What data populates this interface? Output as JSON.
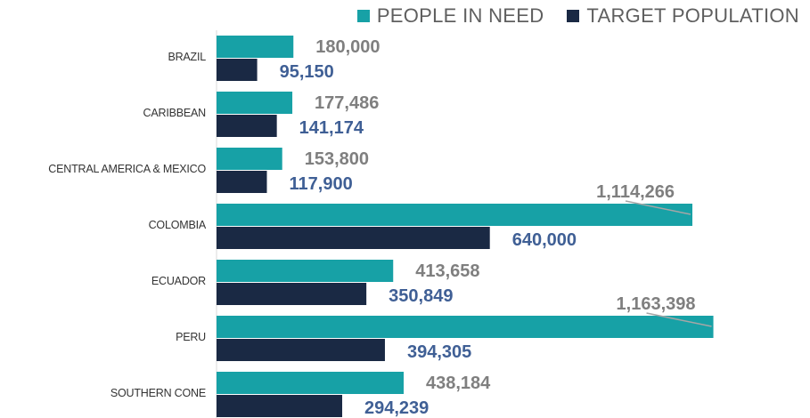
{
  "chart_data": {
    "type": "bar",
    "orientation": "horizontal",
    "categories": [
      "BRAZIL",
      "CARIBBEAN",
      "CENTRAL AMERICA & MEXICO",
      "COLOMBIA",
      "ECUADOR",
      "PERU",
      "SOUTHERN CONE"
    ],
    "series": [
      {
        "name": "PEOPLE IN NEED",
        "color": "#17a1a6",
        "label_color": "#7f7f7f",
        "values": [
          180000,
          177486,
          153800,
          1114266,
          413658,
          1163398,
          438184
        ],
        "labels": [
          "180,000",
          "177,486",
          "153,800",
          "1,114,266",
          "413,658",
          "1,163,398",
          "438,184"
        ]
      },
      {
        "name": "TARGET POPULATION",
        "color": "#1a2944",
        "label_color": "#3f5f95",
        "values": [
          95150,
          141174,
          117900,
          640000,
          350849,
          394305,
          294239
        ],
        "labels": [
          "95,150",
          "141,174",
          "117,900",
          "640,000",
          "350,849",
          "394,305",
          "294,239"
        ]
      }
    ],
    "legend_position": "top-right",
    "grid": false,
    "xlim": [
      0,
      1200000
    ]
  }
}
